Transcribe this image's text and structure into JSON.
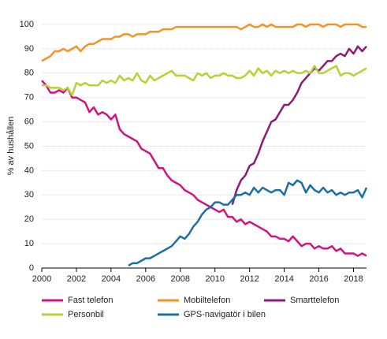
{
  "chart_data": {
    "type": "line",
    "ylabel": "% av hushållen",
    "x": [
      2000,
      2000.25,
      2000.5,
      2000.75,
      2001,
      2001.25,
      2001.5,
      2001.75,
      2002,
      2002.25,
      2002.5,
      2002.75,
      2003,
      2003.25,
      2003.5,
      2003.75,
      2004,
      2004.25,
      2004.5,
      2004.75,
      2005,
      2005.25,
      2005.5,
      2005.75,
      2006,
      2006.25,
      2006.5,
      2006.75,
      2007,
      2007.25,
      2007.5,
      2007.75,
      2008,
      2008.25,
      2008.5,
      2008.75,
      2009,
      2009.25,
      2009.5,
      2009.75,
      2010,
      2010.25,
      2010.5,
      2010.75,
      2011,
      2011.25,
      2011.5,
      2011.75,
      2012,
      2012.25,
      2012.5,
      2012.75,
      2013,
      2013.25,
      2013.5,
      2013.75,
      2014,
      2014.25,
      2014.5,
      2014.75,
      2015,
      2015.25,
      2015.5,
      2015.75,
      2016,
      2016.25,
      2016.5,
      2016.75,
      2017,
      2017.25,
      2017.5,
      2017.75,
      2018,
      2018.25,
      2018.5,
      2018.75
    ],
    "series": [
      {
        "name": "Fast telefon",
        "color": "#d1147d",
        "values": [
          77,
          75,
          72,
          72,
          73,
          72,
          74,
          70,
          70,
          69,
          68,
          64,
          66,
          63,
          64,
          63,
          61,
          63,
          57,
          55,
          54,
          53,
          52,
          49,
          48,
          47,
          44,
          41,
          41,
          38,
          36,
          35,
          34,
          32,
          31,
          30,
          28,
          27,
          26,
          25,
          24,
          23,
          24,
          21,
          21,
          19,
          20,
          18,
          19,
          18,
          17,
          16,
          15,
          13,
          13,
          12,
          12,
          11,
          13,
          11,
          9,
          10,
          10,
          8,
          9,
          8,
          8,
          9,
          7,
          8,
          6,
          6,
          6,
          5,
          6,
          5
        ]
      },
      {
        "name": "Mobiltelefon",
        "color": "#f39226",
        "values": [
          85,
          86,
          87,
          89,
          89,
          90,
          89,
          90,
          91,
          89,
          91,
          92,
          92,
          93,
          94,
          94,
          94,
          95,
          95,
          96,
          96,
          95,
          96,
          96,
          96,
          97,
          97,
          97,
          98,
          98,
          98,
          99,
          99,
          99,
          99,
          99,
          99,
          99,
          99,
          99,
          99,
          99,
          99,
          99,
          99,
          99,
          98,
          99,
          100,
          99,
          99,
          100,
          99,
          100,
          99,
          99,
          99,
          99,
          99,
          100,
          100,
          99,
          100,
          100,
          100,
          99,
          100,
          100,
          100,
          99,
          100,
          100,
          100,
          100,
          99,
          99
        ]
      },
      {
        "name": "Smarttelefon",
        "color": "#8c1a78",
        "values": [
          null,
          null,
          null,
          null,
          null,
          null,
          null,
          null,
          null,
          null,
          null,
          null,
          null,
          null,
          null,
          null,
          null,
          null,
          null,
          null,
          null,
          null,
          null,
          null,
          null,
          null,
          null,
          null,
          null,
          null,
          null,
          null,
          null,
          null,
          null,
          null,
          null,
          null,
          null,
          null,
          null,
          null,
          null,
          null,
          26,
          32,
          36,
          38,
          42,
          43,
          47,
          52,
          56,
          60,
          61,
          64,
          67,
          67,
          69,
          72,
          76,
          78,
          80,
          82,
          81,
          83,
          85,
          85,
          87,
          88,
          87,
          90,
          88,
          91,
          89,
          91
        ]
      },
      {
        "name": "Personbil",
        "color": "#b5d334",
        "values": [
          75,
          75,
          74,
          74,
          74,
          73,
          74,
          71,
          76,
          75,
          76,
          75,
          75,
          75,
          77,
          76,
          77,
          76,
          79,
          77,
          78,
          77,
          80,
          77,
          76,
          79,
          77,
          78,
          79,
          80,
          81,
          79,
          79,
          79,
          78,
          77,
          80,
          79,
          80,
          78,
          79,
          79,
          80,
          79,
          79,
          78,
          78,
          79,
          81,
          79,
          82,
          80,
          81,
          79,
          81,
          80,
          81,
          80,
          81,
          80,
          80,
          81,
          80,
          83,
          80,
          80,
          81,
          82,
          83,
          79,
          80,
          80,
          79,
          80,
          81,
          82
        ]
      },
      {
        "name": "GPS-navigatör i bilen",
        "color": "#1b6fa5",
        "values": [
          null,
          null,
          null,
          null,
          null,
          null,
          null,
          null,
          null,
          null,
          null,
          null,
          null,
          null,
          null,
          null,
          null,
          null,
          null,
          null,
          1,
          2,
          2,
          3,
          4,
          4,
          5,
          6,
          7,
          8,
          9,
          11,
          13,
          12,
          14,
          17,
          19,
          22,
          24,
          25,
          27,
          27,
          26,
          26,
          28,
          30,
          30,
          31,
          30,
          33,
          31,
          33,
          32,
          31,
          32,
          32,
          30,
          35,
          34,
          36,
          35,
          31,
          34,
          32,
          31,
          33,
          31,
          32,
          30,
          31,
          30,
          31,
          31,
          32,
          29,
          33
        ]
      }
    ],
    "xlim": [
      2000,
      2018.75
    ],
    "xticks": [
      2000,
      2002,
      2004,
      2006,
      2008,
      2010,
      2012,
      2014,
      2016,
      2018
    ],
    "ylim": [
      0,
      100
    ],
    "yticks": [
      0,
      10,
      20,
      30,
      40,
      50,
      60,
      70,
      80,
      90,
      100
    ],
    "grid": true,
    "legend": "bottom"
  }
}
